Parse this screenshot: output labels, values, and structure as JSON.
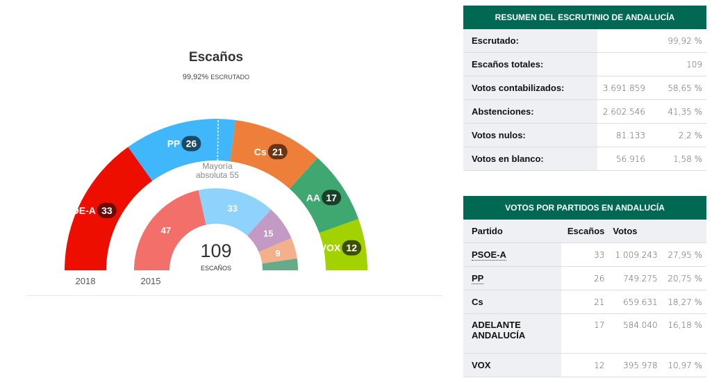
{
  "chart_data": {
    "type": "parliament-semicircle",
    "title": "Escaños",
    "subtitle_value": "99,92%",
    "subtitle_label": "ESCRUTADO",
    "total": 109,
    "total_label": "ESCAÑOS",
    "majority_label": "Mayoría absoluta 55",
    "majority": 55,
    "rings": [
      {
        "name": "2018",
        "series": [
          {
            "party": "PSOE-A",
            "seats": 33,
            "color": "#ee0e00",
            "badge": "#6b0b05"
          },
          {
            "party": "PP",
            "seats": 26,
            "color": "#40b6fb",
            "badge": "#1a4a66"
          },
          {
            "party": "Cs",
            "seats": 21,
            "color": "#ee7f3b",
            "badge": "#6a3415"
          },
          {
            "party": "AA",
            "seats": 17,
            "color": "#3ea870",
            "badge": "#173f2a"
          },
          {
            "party": "VOX",
            "seats": 12,
            "color": "#a2d300",
            "badge": "#3d4f00"
          }
        ]
      },
      {
        "name": "2015",
        "series": [
          {
            "seats": 47,
            "color": "#f36f6a"
          },
          {
            "seats": 33,
            "color": "#8dd3fc"
          },
          {
            "seats": 15,
            "color": "#c29ac4"
          },
          {
            "seats": 9,
            "color": "#f4b08a"
          },
          {
            "seats": 5,
            "color": "#66aa8a"
          }
        ]
      }
    ]
  },
  "summary": {
    "title": "RESUMEN DEL ESCRUTINIO DE ANDALUCÍA",
    "rows": [
      {
        "label": "Escrutado:",
        "v1": "",
        "v2": "99,92 %"
      },
      {
        "label": "Escaños totales:",
        "v1": "",
        "v2": "109"
      },
      {
        "label": "Votos contabilizados:",
        "v1": "3.691.859",
        "v2": "58,65 %"
      },
      {
        "label": "Abstenciones:",
        "v1": "2.602.546",
        "v2": "41,35 %"
      },
      {
        "label": "Votos nulos:",
        "v1": "81.133",
        "v2": "2,2 %"
      },
      {
        "label": "Votos en blanco:",
        "v1": "56.916",
        "v2": "1,58 %"
      }
    ]
  },
  "parties": {
    "title": "VOTOS POR PARTIDOS EN ANDALUCÍA",
    "headers": [
      "Partido",
      "Escaños",
      "Votos",
      ""
    ],
    "rows": [
      {
        "name": "PSOE-A",
        "seats": "33",
        "votes": "1.009.243",
        "pct": "27,95 %",
        "link": true
      },
      {
        "name": "PP",
        "seats": "26",
        "votes": "749.275",
        "pct": "20,75 %",
        "link": true
      },
      {
        "name": "Cs",
        "seats": "21",
        "votes": "659.631",
        "pct": "18,27 %"
      },
      {
        "name": "ADELANTE ANDALUCÍA",
        "seats": "17",
        "votes": "584.040",
        "pct": "16,18 %"
      },
      {
        "name": "VOX",
        "seats": "12",
        "votes": "395.978",
        "pct": "10,97 %"
      }
    ]
  }
}
